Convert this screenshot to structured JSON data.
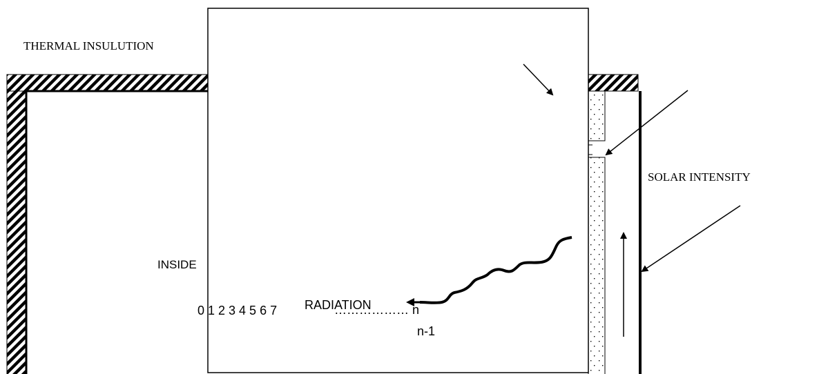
{
  "labels": {
    "thermal_insulation": "THERMAL INSULUTION",
    "solar_intensity": "SOLAR INTENSITY",
    "inside": "INSIDE",
    "radiation": "RADIATION",
    "node_numbers": "0  1 2 3 4 5  6  7",
    "node_dots": "……………… n",
    "node_n_minus_1": "n-1"
  },
  "colors": {
    "line": "#000000",
    "background": "#ffffff"
  }
}
